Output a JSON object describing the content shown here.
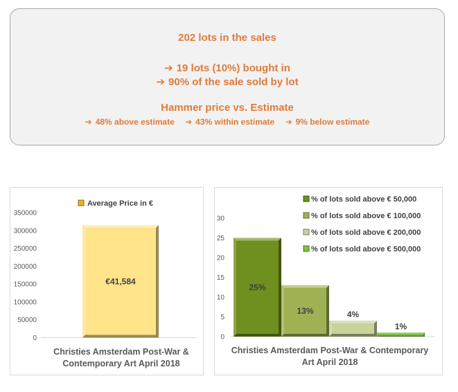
{
  "colors": {
    "accent": "#e07b39",
    "summary_bg": "#f2f2f2",
    "avg_bar": "#ffe48a",
    "pct_bars": [
      "#6f8f1e",
      "#9eb253",
      "#c8d39a",
      "#7cc243"
    ]
  },
  "summary": {
    "line1": "202 lots in the sales",
    "line2": "19 lots (10%) bought in",
    "line3": "90% of the sale sold by lot",
    "heading": "Hammer price vs. Estimate",
    "estimates": [
      {
        "text": "48% above estimate"
      },
      {
        "text": "43% within estimate"
      },
      {
        "text": "9% below estimate"
      }
    ]
  },
  "chart_data": [
    {
      "type": "bar",
      "legend": "Average Price in €",
      "legend_position": "top",
      "categories": [
        "Christies Amsterdam Post-War & Contemporary Art April 2018"
      ],
      "category_lines": [
        "Christies Amsterdam Post-War &",
        "Contemporary Art April 2018"
      ],
      "values": [
        41584
      ],
      "value_labels": [
        "€41,584"
      ],
      "yticks": [
        0,
        50000,
        100000,
        150000,
        200000,
        250000,
        300000,
        350000
      ],
      "ytick_labels": [
        "0",
        "50000",
        "100000",
        "150000",
        "200000",
        "250000",
        "300000",
        "350000"
      ],
      "ylim": [
        0,
        350000
      ],
      "scale_note": "bar height as drawn does not match value",
      "drawn_height_value": 315000,
      "grid": false
    },
    {
      "type": "bar",
      "legend_position": "top-right",
      "categories": [
        "Christies Amsterdam Post-War & Contemporary Art April 2018"
      ],
      "category_lines": [
        "Christies Amsterdam Post-War & Contemporary",
        "Art April 2018"
      ],
      "series": [
        {
          "name": "% of lots sold above € 50,000",
          "values": [
            25
          ],
          "value_label": "25%"
        },
        {
          "name": "% of lots sold above € 100,000",
          "values": [
            13
          ],
          "value_label": "13%"
        },
        {
          "name": "% of lots sold above € 200,000",
          "values": [
            4
          ],
          "value_label": "4%"
        },
        {
          "name": "% of lots sold above € 500,000",
          "values": [
            1
          ],
          "value_label": "1%"
        }
      ],
      "yticks": [
        0,
        5,
        10,
        15,
        20,
        25,
        30
      ],
      "ytick_labels": [
        "0",
        "5",
        "10",
        "15",
        "20",
        "25",
        "30"
      ],
      "ylim": [
        0,
        30
      ],
      "grid": false
    }
  ]
}
